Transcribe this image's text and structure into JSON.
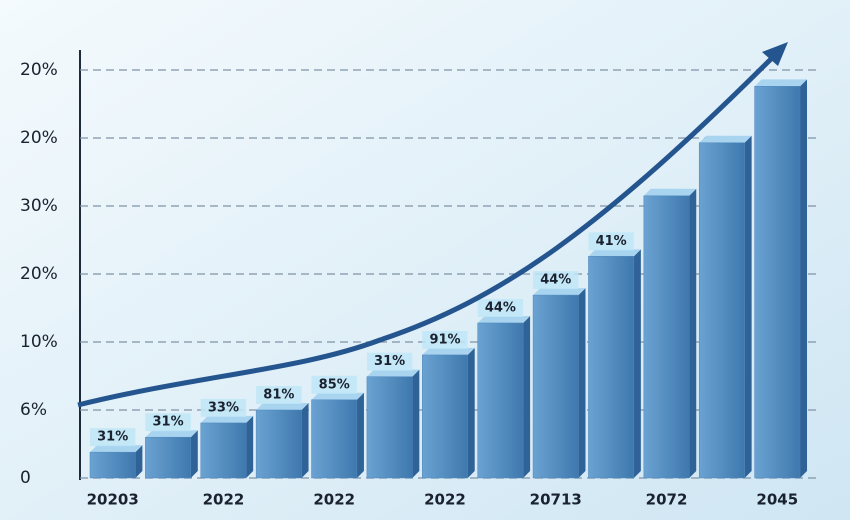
{
  "chart_data": {
    "type": "bar",
    "categories": [
      "20203",
      null,
      "2022",
      null,
      "2022",
      null,
      "2022",
      null,
      "20713",
      null,
      "2072",
      null,
      "2045"
    ],
    "values": [
      0.38,
      0.6,
      0.81,
      1.0,
      1.15,
      1.49,
      1.81,
      2.28,
      2.69,
      3.26,
      4.15,
      4.93,
      5.76
    ],
    "annotations": [
      "31%",
      "31%",
      "33%",
      "81%",
      "85%",
      "31%",
      "91%",
      "44%",
      "44%",
      "41%",
      null,
      null,
      null
    ],
    "color": "#4f86bb",
    "ylim": [
      0,
      6.5
    ],
    "yticks": [
      {
        "value": 0,
        "label": "0"
      },
      {
        "value": 1,
        "label": "6%"
      },
      {
        "value": 2,
        "label": "10%"
      },
      {
        "value": 3,
        "label": "20%"
      },
      {
        "value": 4,
        "label": "30%"
      },
      {
        "value": 5,
        "label": "20%"
      },
      {
        "value": 6,
        "label": "20%"
      }
    ],
    "grid": true
  }
}
